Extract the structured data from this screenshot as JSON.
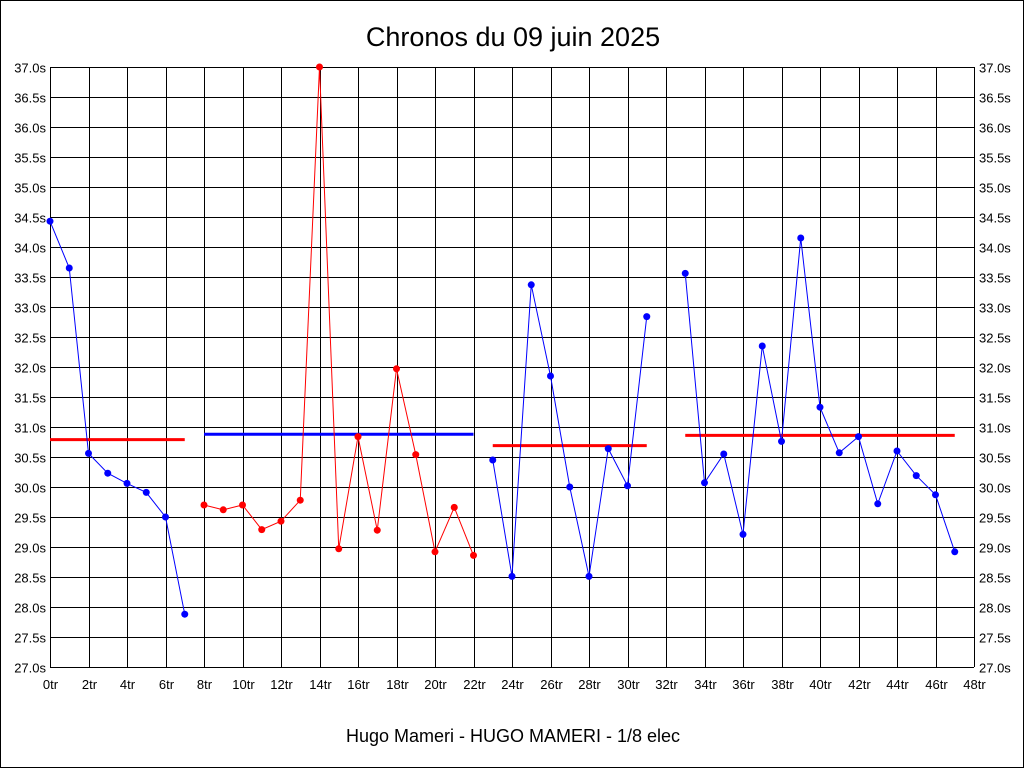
{
  "chart_data": {
    "type": "line",
    "title": "Chronos du 09 juin 2025",
    "subtitle": "Hugo Mameri - HUGO MAMERI - 1/8 elec",
    "x_unit": "tr",
    "y_unit": "s",
    "xlim": [
      0,
      48
    ],
    "ylim": [
      27.0,
      37.0
    ],
    "x_ticks": [
      "0tr",
      "2tr",
      "4tr",
      "6tr",
      "8tr",
      "10tr",
      "12tr",
      "14tr",
      "16tr",
      "18tr",
      "20tr",
      "22tr",
      "24tr",
      "26tr",
      "28tr",
      "30tr",
      "32tr",
      "34tr",
      "36tr",
      "38tr",
      "40tr",
      "42tr",
      "44tr",
      "46tr",
      "48tr"
    ],
    "y_ticks": [
      "27.0s",
      "27.5s",
      "28.0s",
      "28.5s",
      "29.0s",
      "29.5s",
      "30.0s",
      "30.5s",
      "31.0s",
      "31.5s",
      "32.0s",
      "32.5s",
      "33.0s",
      "33.5s",
      "34.0s",
      "34.5s",
      "35.0s",
      "35.5s",
      "36.0s",
      "36.5s",
      "37.0s"
    ],
    "grid": true,
    "colors": {
      "blue": "#0000ff",
      "red": "#ff0000",
      "grid": "#000000"
    },
    "series": [
      {
        "color": "#0000ff",
        "points": [
          [
            0,
            34.43
          ],
          [
            1,
            33.65
          ],
          [
            2,
            30.56
          ],
          [
            3,
            30.23
          ],
          [
            4,
            30.06
          ],
          [
            5,
            29.91
          ],
          [
            6,
            29.5
          ],
          [
            7,
            27.88
          ]
        ]
      },
      {
        "color": "#ff0000",
        "points": [
          [
            8,
            29.7
          ],
          [
            9,
            29.62
          ],
          [
            10,
            29.7
          ],
          [
            11,
            29.29
          ],
          [
            12,
            29.43
          ],
          [
            13,
            29.78
          ],
          [
            14,
            37.0
          ],
          [
            15,
            28.97
          ],
          [
            16,
            30.84
          ],
          [
            17,
            29.28
          ],
          [
            18,
            31.97
          ],
          [
            19,
            30.54
          ],
          [
            20,
            28.92
          ],
          [
            21,
            29.66
          ],
          [
            22,
            28.86
          ]
        ]
      },
      {
        "color": "#0000ff",
        "points": [
          [
            23,
            30.45
          ],
          [
            24,
            28.51
          ],
          [
            25,
            33.37
          ],
          [
            26,
            31.85
          ],
          [
            27,
            30.0
          ],
          [
            28,
            28.51
          ],
          [
            29,
            30.64
          ],
          [
            30,
            30.02
          ],
          [
            31,
            32.84
          ]
        ]
      },
      {
        "color": "#0000ff",
        "points": [
          [
            33,
            33.56
          ],
          [
            34,
            30.07
          ],
          [
            35,
            30.55
          ],
          [
            36,
            29.21
          ],
          [
            37,
            32.35
          ],
          [
            38,
            30.76
          ],
          [
            39,
            34.15
          ],
          [
            40,
            31.33
          ],
          [
            41,
            30.57
          ],
          [
            42,
            30.84
          ],
          [
            43,
            29.72
          ],
          [
            44,
            30.6
          ],
          [
            45,
            30.19
          ],
          [
            46,
            29.87
          ],
          [
            47,
            28.92
          ]
        ]
      }
    ],
    "averages": [
      {
        "color": "#ff0000",
        "x0": 0,
        "x1": 7,
        "y": 30.79
      },
      {
        "color": "#0000ff",
        "x0": 8,
        "x1": 22,
        "y": 30.88
      },
      {
        "color": "#ff0000",
        "x0": 23,
        "x1": 31,
        "y": 30.69
      },
      {
        "color": "#ff0000",
        "x0": 33,
        "x1": 47,
        "y": 30.86
      }
    ]
  }
}
